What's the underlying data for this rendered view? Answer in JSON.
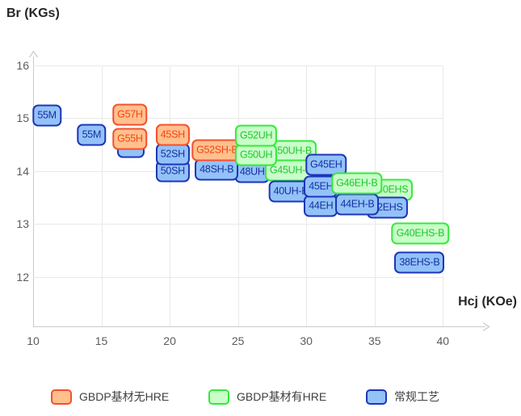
{
  "chart_data": {
    "type": "scatter",
    "title": "",
    "xlabel": "Hcj (KOe)",
    "ylabel": "Br (KGs)",
    "xlim": [
      10,
      43.5
    ],
    "ylim": [
      11.1,
      16.2
    ],
    "x_ticks": [
      10,
      15,
      20,
      25,
      30,
      35,
      40
    ],
    "y_ticks": [
      16,
      15,
      14,
      13,
      12
    ],
    "grid": true,
    "legend_position": "bottom",
    "series_styles": {
      "gbdp_no_hre": {
        "name": "GBDP基材无HRE",
        "fill": "#ffc08e",
        "border": "#f4502d",
        "text": "#f4440f"
      },
      "gbdp_hre": {
        "name": "GBDP基材有HRE",
        "fill": "#c9fec9",
        "border": "#35e93a",
        "text": "#21c52e"
      },
      "conventional": {
        "name": "常规工艺",
        "fill": "#93c2f9",
        "border": "#1d35b8",
        "text": "#17309e"
      }
    },
    "points": [
      {
        "label": "52H",
        "series": "conventional",
        "hcj": 17.13,
        "br": 14.46
      },
      {
        "label": "G55H",
        "series": "gbdp_no_hre",
        "hcj": 17.09,
        "br": 14.61
      },
      {
        "label": "G57H",
        "series": "gbdp_no_hre",
        "hcj": 17.09,
        "br": 15.07
      },
      {
        "label": "50SH",
        "series": "conventional",
        "hcj": 20.22,
        "br": 14.0
      },
      {
        "label": "52SH",
        "series": "conventional",
        "hcj": 20.22,
        "br": 14.32
      },
      {
        "label": "45SH",
        "series": "gbdp_no_hre",
        "hcj": 20.22,
        "br": 14.68
      },
      {
        "label": "48UH",
        "series": "conventional",
        "hcj": 26.04,
        "br": 13.98
      },
      {
        "label": "48SH-B",
        "series": "conventional",
        "hcj": 23.44,
        "br": 14.03
      },
      {
        "label": "G52SH-B",
        "series": "gbdp_no_hre",
        "hcj": 23.47,
        "br": 14.39
      },
      {
        "label": "G50UH-B",
        "series": "gbdp_hre",
        "hcj": 28.86,
        "br": 14.38
      },
      {
        "label": "G45UH-B",
        "series": "gbdp_hre",
        "hcj": 28.86,
        "br": 14.01
      },
      {
        "label": "G50UH",
        "series": "gbdp_hre",
        "hcj": 26.33,
        "br": 14.3
      },
      {
        "label": "G52UH",
        "series": "gbdp_hre",
        "hcj": 26.33,
        "br": 14.67
      },
      {
        "label": "40UH-B",
        "series": "conventional",
        "hcj": 28.86,
        "br": 13.62
      },
      {
        "label": "G45EH",
        "series": "conventional",
        "hcj": 31.45,
        "br": 14.12
      },
      {
        "label": "44EH",
        "series": "conventional",
        "hcj": 31.07,
        "br": 13.34
      },
      {
        "label": "45EH",
        "series": "conventional",
        "hcj": 31.07,
        "br": 13.7
      },
      {
        "label": "40EHS",
        "series": "gbdp_hre",
        "hcj": 36.33,
        "br": 13.65
      },
      {
        "label": "42EHS",
        "series": "conventional",
        "hcj": 35.93,
        "br": 13.31
      },
      {
        "label": "44EH-B",
        "series": "conventional",
        "hcj": 33.74,
        "br": 13.37
      },
      {
        "label": "G46EH-B",
        "series": "gbdp_hre",
        "hcj": 33.7,
        "br": 13.76
      },
      {
        "label": "G40EHS-B",
        "series": "gbdp_hre",
        "hcj": 38.35,
        "br": 12.82
      },
      {
        "label": "38EHS-B",
        "series": "conventional",
        "hcj": 38.29,
        "br": 12.27
      },
      {
        "label": "55M",
        "series": "conventional",
        "hcj": 11.01,
        "br": 15.05
      },
      {
        "label": "55M",
        "series": "conventional",
        "hcj": 14.28,
        "br": 14.69
      }
    ]
  },
  "legend": {
    "items": [
      {
        "series": "gbdp_no_hre",
        "label": "GBDP基材无HRE"
      },
      {
        "series": "gbdp_hre",
        "label": "GBDP基材有HRE"
      },
      {
        "series": "conventional",
        "label": "常规工艺"
      }
    ]
  }
}
